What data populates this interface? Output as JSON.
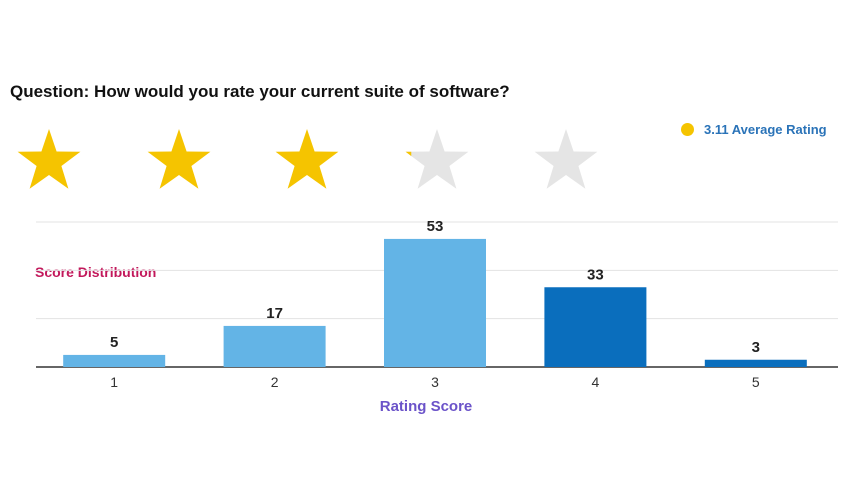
{
  "question": "Question: How would you rate your current suite of software?",
  "legend": {
    "label": "3.11 Average Rating",
    "color": "#f5c400"
  },
  "rating": {
    "value": 3.11,
    "max": 5,
    "star_filled_color": "#f5c400",
    "star_empty_color": "#e5e5e5"
  },
  "annotation": "Score Distribution",
  "chart_data": {
    "type": "bar",
    "categories": [
      "1",
      "2",
      "3",
      "4",
      "5"
    ],
    "values": [
      5,
      17,
      53,
      33,
      3
    ],
    "xlabel": "Rating Score",
    "ylabel": "",
    "ylim": [
      0,
      60
    ],
    "grid": true,
    "colors": [
      "#63b4e6",
      "#63b4e6",
      "#63b4e6",
      "#0a6ebd",
      "#0a6ebd"
    ],
    "legend_placement": "top-right"
  }
}
